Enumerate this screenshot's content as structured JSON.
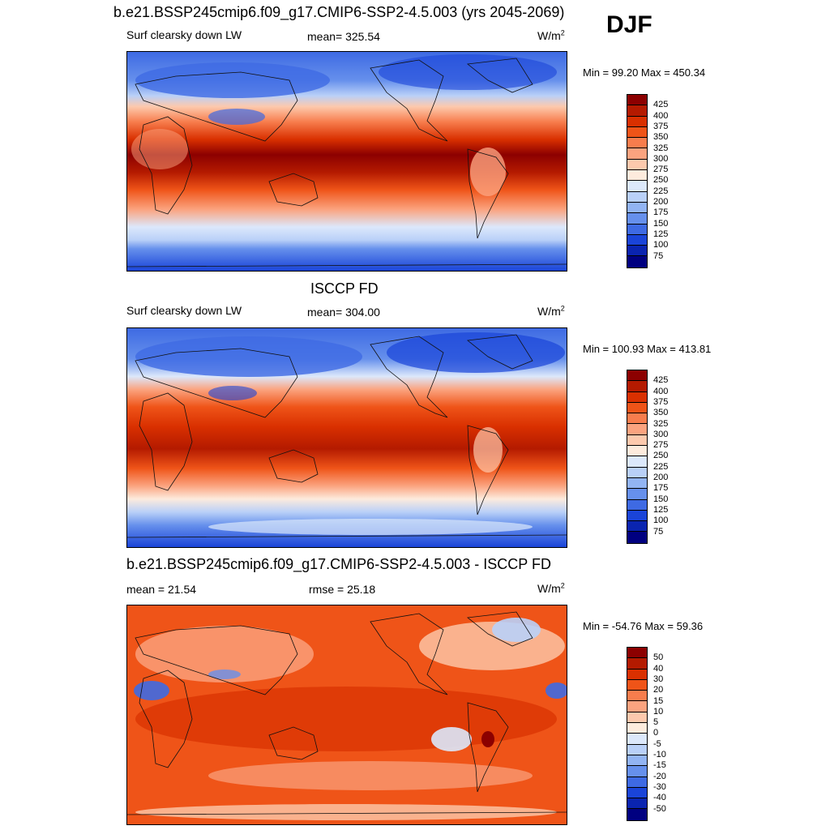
{
  "header": {
    "title": "b.e21.BSSP245cmip6.f09_g17.CMIP6-SSP2-4.5.003 (yrs 2045-2069)",
    "season": "DJF"
  },
  "panels": [
    {
      "variable": "Surf clearsky down LW",
      "stat_text": "mean= 325.54",
      "unit_base": "W/m",
      "unit_exp": "2",
      "minmax": "Min =  99.20 Max = 450.34",
      "levels": [
        "425",
        "400",
        "375",
        "350",
        "325",
        "300",
        "275",
        "250",
        "225",
        "200",
        "175",
        "150",
        "125",
        "100",
        "75"
      ],
      "colors": [
        "#8c0000",
        "#b41a00",
        "#d93000",
        "#ef5418",
        "#f77d4d",
        "#fba37f",
        "#fdc9ad",
        "#fdebdd",
        "#dce8fb",
        "#b9d0f8",
        "#92b4f3",
        "#6690ec",
        "#3e6ae3",
        "#1a44d8",
        "#0a24b0",
        "#000080"
      ]
    },
    {
      "title": "ISCCP FD",
      "variable": "Surf clearsky down LW",
      "stat_text": "mean= 304.00",
      "unit_base": "W/m",
      "unit_exp": "2",
      "minmax": "Min = 100.93 Max = 413.81",
      "levels": [
        "425",
        "400",
        "375",
        "350",
        "325",
        "300",
        "275",
        "250",
        "225",
        "200",
        "175",
        "150",
        "125",
        "100",
        "75"
      ],
      "colors": [
        "#8c0000",
        "#b41a00",
        "#d93000",
        "#ef5418",
        "#f77d4d",
        "#fba37f",
        "#fdc9ad",
        "#fdebdd",
        "#dce8fb",
        "#b9d0f8",
        "#92b4f3",
        "#6690ec",
        "#3e6ae3",
        "#1a44d8",
        "#0a24b0",
        "#000080"
      ]
    },
    {
      "title": "b.e21.BSSP245cmip6.f09_g17.CMIP6-SSP2-4.5.003 - ISCCP FD",
      "stat_text": "mean =  21.54",
      "stat2_text": "rmse =  25.18",
      "unit_base": "W/m",
      "unit_exp": "2",
      "minmax": "Min = -54.76 Max =  59.36",
      "levels": [
        "50",
        "40",
        "30",
        "20",
        "15",
        "10",
        "5",
        "0",
        "-5",
        "-10",
        "-15",
        "-20",
        "-30",
        "-40",
        "-50"
      ],
      "colors": [
        "#8c0000",
        "#b41a00",
        "#d93000",
        "#ef5418",
        "#f77d4d",
        "#fba37f",
        "#fdc9ad",
        "#fdebdd",
        "#dce8fb",
        "#b9d0f8",
        "#92b4f3",
        "#6690ec",
        "#3e6ae3",
        "#1a44d8",
        "#0a24b0",
        "#000080"
      ]
    }
  ]
}
